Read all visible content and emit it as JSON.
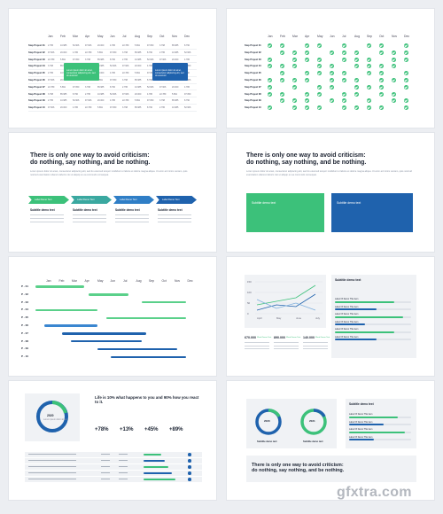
{
  "months": [
    "Jan",
    "Feb",
    "Mar",
    "Apr",
    "May",
    "Jun",
    "Jul",
    "Aug",
    "Sep",
    "Oct",
    "Nov",
    "Dec"
  ],
  "projects": [
    "Step Project 01",
    "Step Project 02",
    "Step Project 03",
    "Step Project 04",
    "Step Project 05",
    "Step Project 06",
    "Step Project 07",
    "Step Project 08",
    "Step Project 09",
    "Step Project 10"
  ],
  "table_values": [
    "2.795",
    "10.985",
    "52.906",
    "97.906",
    "20.000",
    "4.786",
    "22.789",
    "5.891",
    "97.050",
    "3.798",
    "85.985",
    "8.790"
  ],
  "callout_text": "Lorem ipsum dolor sit amet, consectetur adipiscing elit, sed do eiusmod",
  "heading": "There is only one way to avoid criticism: do nothing, say nothing, and be nothing.",
  "heading_line1": "There is only one way to avoid criticism:",
  "heading_line2": "do nothing, say nothing, and be nothing.",
  "body_text": "Lorem ipsum dolor sit amet, consectetur adipiscing elit, sed do eiusmod tempor incididunt ut labore et dolore magna aliqua. Ut enim ad minim veniam, quis nostrud exercitation ullamco laboris nisi ut aliquip ex ea commodo consequat.",
  "arrow_label": "Label Demo Text",
  "subtitle": "Subtitle demo text",
  "card_values": [
    "2.795",
    "1.186",
    "8.376",
    "9.726"
  ],
  "p_labels": [
    "P - 01",
    "P - 02",
    "P - 03",
    "P - 04",
    "P - 05",
    "P - 06",
    "P - 07",
    "P - 08",
    "P - 09",
    "P - 10"
  ],
  "line_chart_x": [
    "April",
    "May",
    "June",
    "July"
  ],
  "line_chart_y": [
    "150",
    "100",
    "50",
    "0"
  ],
  "stats": [
    {
      "value": "670.000",
      "label": "Word Demo Text"
    },
    {
      "value": "890.000",
      "label": "Word Demo Text"
    },
    {
      "value": "140.000",
      "label": "Word Demo Text"
    }
  ],
  "progress_label": "Label Of Demo This item",
  "donut_year_a": "2020",
  "donut_year_b": "2021",
  "donut_caption": "Lorem ipsum dolor sit am",
  "quote": "Life is 10% what happens to you and 90% how you react to it.",
  "percentages": [
    "+78%",
    "+13%",
    "+45%",
    "+89%"
  ],
  "watermark": "gfxtra.com",
  "colors": {
    "green": "#3cc17a",
    "blue": "#1f62ad"
  }
}
